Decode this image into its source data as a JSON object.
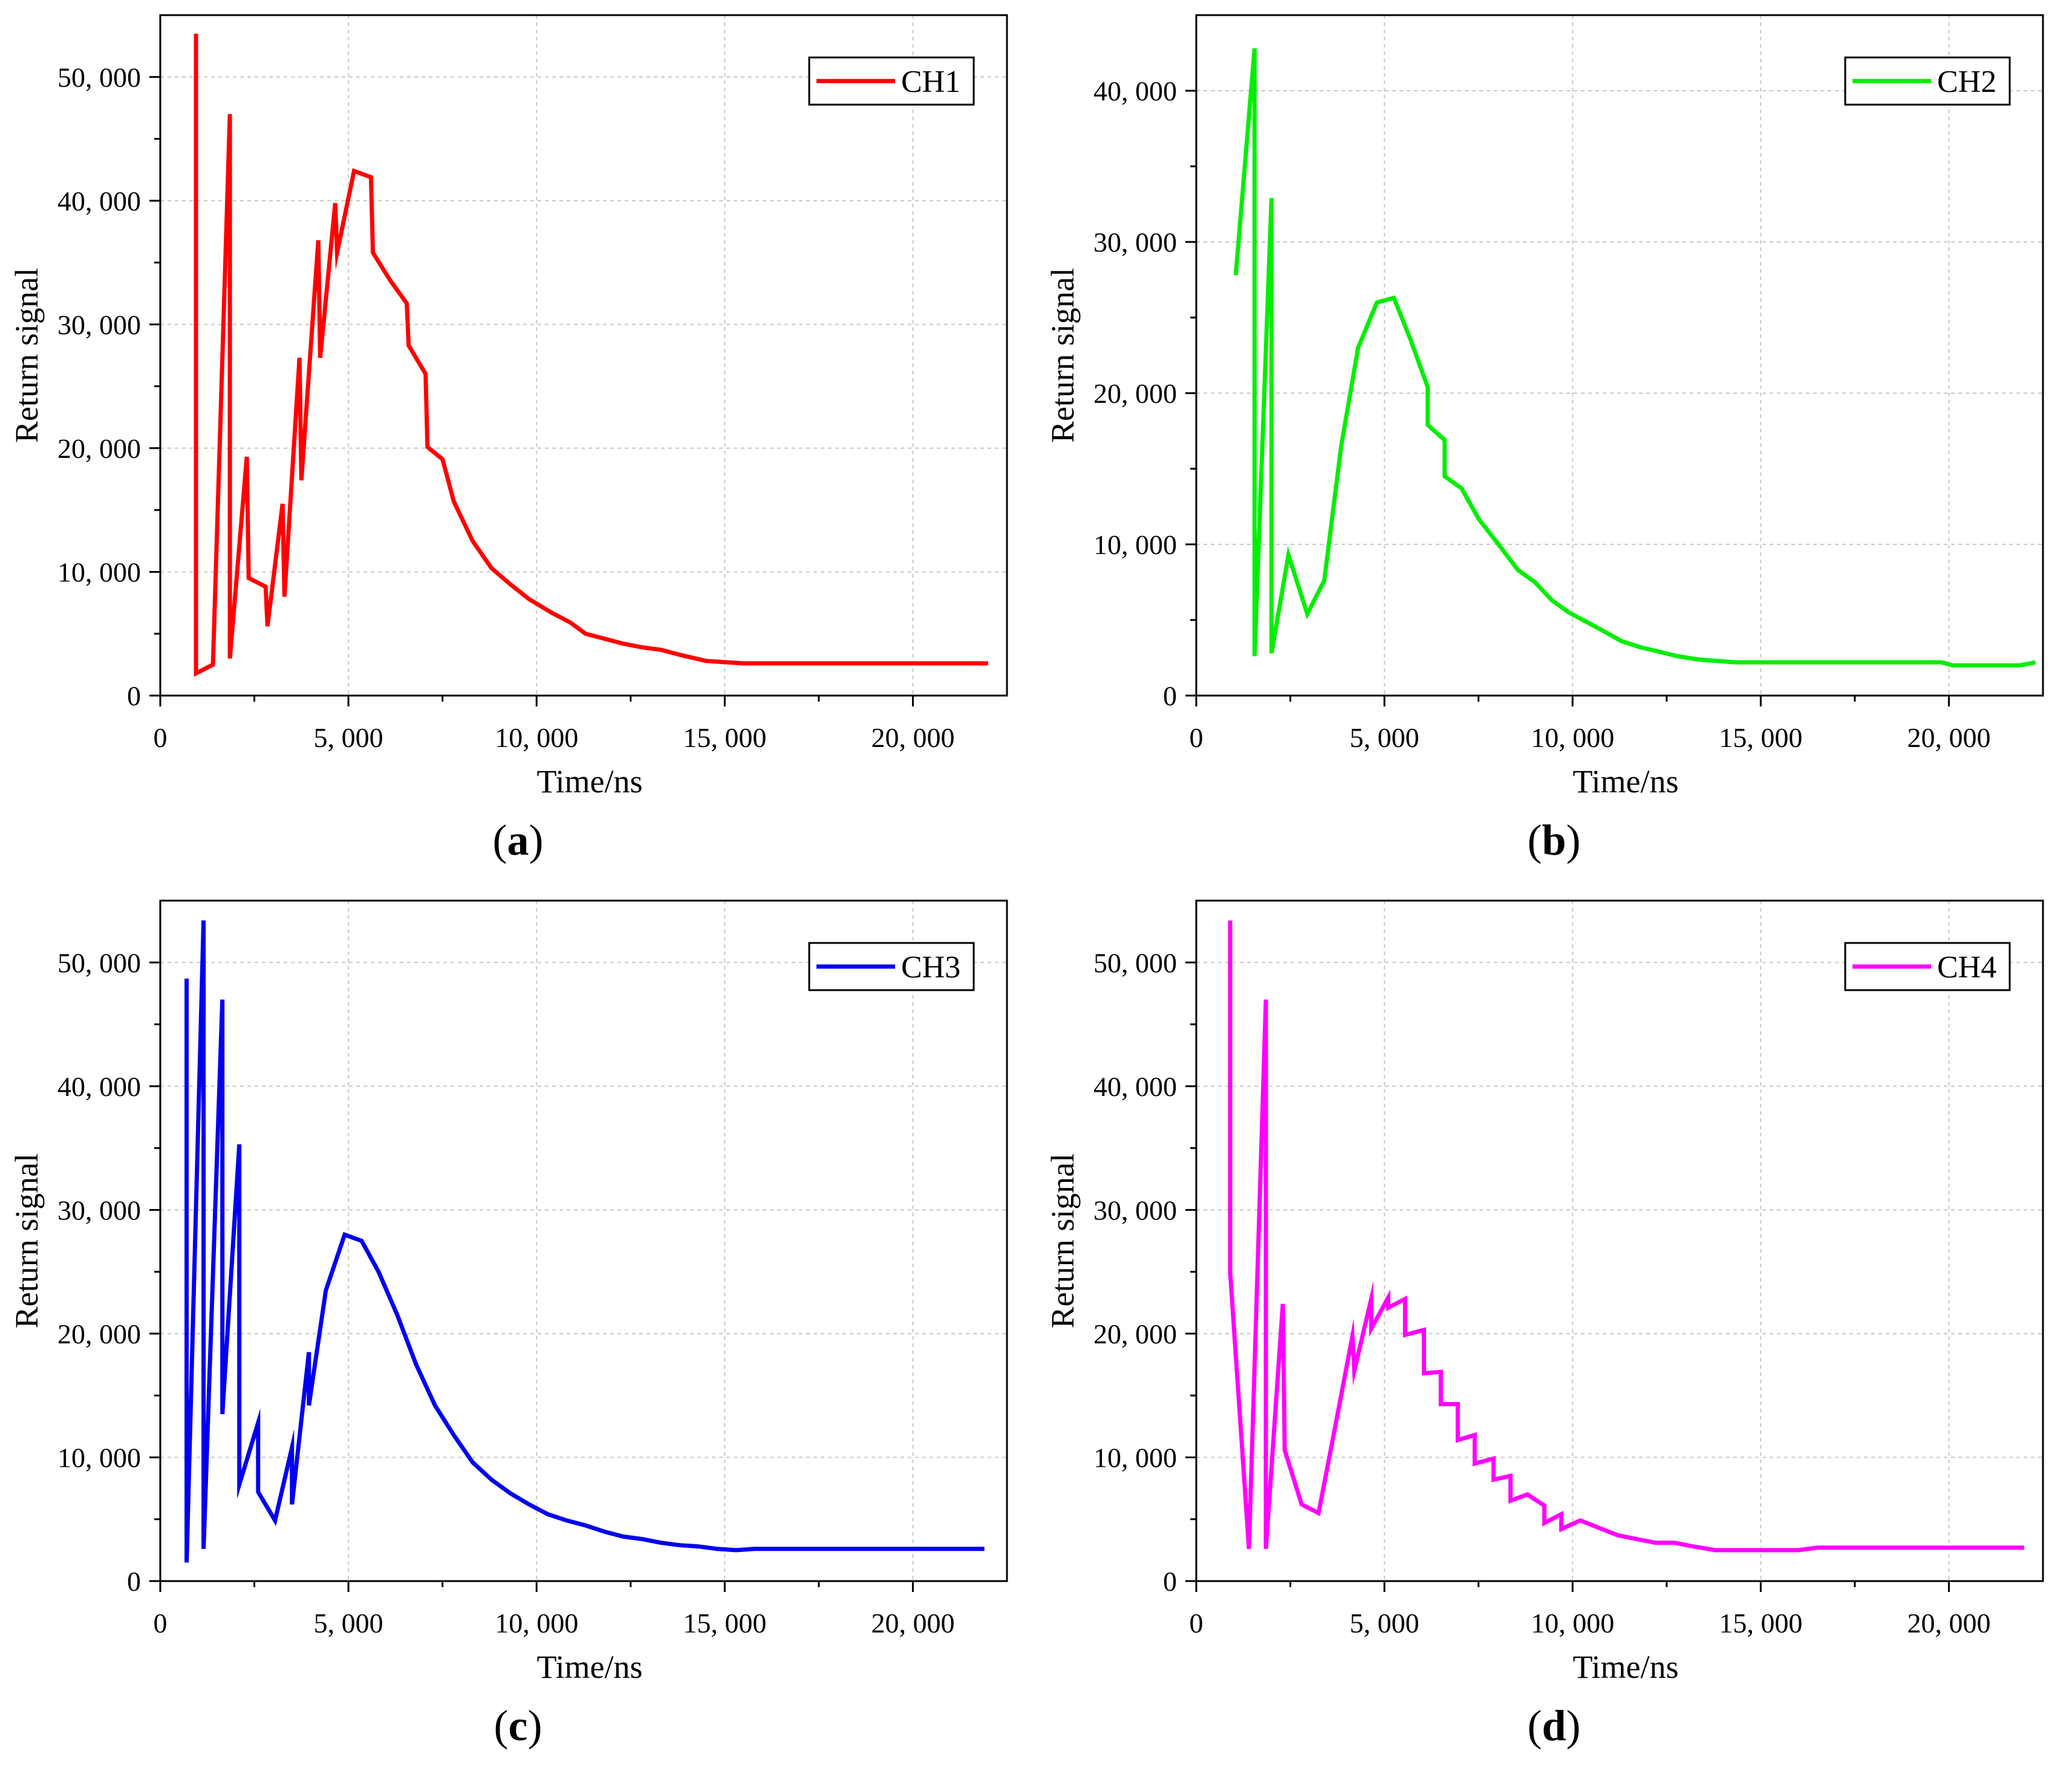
{
  "chart_data": [
    {
      "type": "line",
      "panel_label": "a",
      "xlabel": "Time/ns",
      "ylabel": "Return signal",
      "xlim": [
        0,
        22500
      ],
      "ylim": [
        0,
        55000
      ],
      "xticks": [
        0,
        5000,
        10000,
        15000,
        20000
      ],
      "xtick_labels": [
        "0",
        "5, 000",
        "10, 000",
        "15, 000",
        "20, 000"
      ],
      "yticks": [
        0,
        10000,
        20000,
        30000,
        40000,
        50000
      ],
      "ytick_labels": [
        "0",
        "10, 000",
        "20, 000",
        "30, 000",
        "40, 000",
        "50, 000"
      ],
      "grid": true,
      "legend_position": "top-right",
      "series": [
        {
          "name": "CH1",
          "color": "#ff0000",
          "x": [
            950,
            950,
            1400,
            1850,
            1850,
            2300,
            2350,
            2800,
            2850,
            3250,
            3300,
            3700,
            3750,
            4200,
            4250,
            4650,
            4700,
            5150,
            5600,
            5650,
            6100,
            6550,
            6600,
            7050,
            7100,
            7500,
            7800,
            8300,
            8800,
            9300,
            9800,
            10400,
            10900,
            11300,
            11800,
            12300,
            12800,
            13300,
            13800,
            14500,
            15000,
            15500,
            16500,
            18000,
            20000,
            22000
          ],
          "y": [
            53500,
            1800,
            2500,
            47000,
            3000,
            19300,
            9500,
            8800,
            5600,
            15500,
            8000,
            27300,
            17400,
            36800,
            27300,
            39800,
            35800,
            42400,
            41900,
            35800,
            33600,
            31700,
            28300,
            26000,
            20100,
            19100,
            15700,
            12500,
            10300,
            9000,
            7800,
            6700,
            5900,
            5000,
            4600,
            4200,
            3900,
            3700,
            3300,
            2800,
            2700,
            2600,
            2600,
            2600,
            2600,
            2600
          ]
        }
      ]
    },
    {
      "type": "line",
      "panel_label": "b",
      "xlabel": "Time/ns",
      "ylabel": "Return signal",
      "xlim": [
        0,
        22500
      ],
      "ylim": [
        0,
        45000
      ],
      "xticks": [
        0,
        5000,
        10000,
        15000,
        20000
      ],
      "xtick_labels": [
        "0",
        "5, 000",
        "10, 000",
        "15, 000",
        "20, 000"
      ],
      "yticks": [
        0,
        10000,
        20000,
        30000,
        40000
      ],
      "ytick_labels": [
        "0",
        "10, 000",
        "20, 000",
        "30, 000",
        "40, 000"
      ],
      "grid": true,
      "legend_position": "top-right",
      "series": [
        {
          "name": "CH2",
          "color": "#00ee00",
          "x": [
            1050,
            1550,
            1550,
            2000,
            2000,
            2450,
            2950,
            3400,
            3850,
            4300,
            4800,
            5250,
            5700,
            6150,
            6150,
            6600,
            6600,
            7050,
            7500,
            8000,
            8550,
            9000,
            9450,
            9900,
            10350,
            10800,
            11300,
            11800,
            12300,
            12800,
            13300,
            13800,
            14300,
            14800,
            15300,
            16000,
            18000,
            19800,
            20100,
            21000,
            21900,
            22300
          ],
          "y": [
            27800,
            42800,
            2600,
            32900,
            2800,
            9300,
            5400,
            7600,
            16500,
            23000,
            26000,
            26300,
            23500,
            20400,
            17900,
            16900,
            14500,
            13700,
            11700,
            10100,
            8300,
            7500,
            6300,
            5500,
            4900,
            4300,
            3600,
            3200,
            2900,
            2600,
            2400,
            2300,
            2200,
            2200,
            2200,
            2200,
            2200,
            2200,
            2000,
            2000,
            2000,
            2200
          ]
        }
      ]
    },
    {
      "type": "line",
      "panel_label": "c",
      "xlabel": "Time/ns",
      "ylabel": "Return signal",
      "xlim": [
        0,
        22500
      ],
      "ylim": [
        0,
        55000
      ],
      "xticks": [
        0,
        5000,
        10000,
        15000,
        20000
      ],
      "xtick_labels": [
        "0",
        "5, 000",
        "10, 000",
        "15, 000",
        "20, 000"
      ],
      "yticks": [
        0,
        10000,
        20000,
        30000,
        40000,
        50000
      ],
      "ytick_labels": [
        "0",
        "10, 000",
        "20, 000",
        "30, 000",
        "40, 000",
        "50, 000"
      ],
      "grid": true,
      "legend_position": "top-right",
      "series": [
        {
          "name": "CH3",
          "color": "#0000ee",
          "x": [
            700,
            700,
            1150,
            1150,
            1650,
            1650,
            2100,
            2100,
            2600,
            2600,
            3050,
            3500,
            3500,
            3950,
            3950,
            4400,
            4900,
            5350,
            5800,
            6300,
            6800,
            7300,
            7800,
            8300,
            8800,
            9300,
            9800,
            10300,
            10800,
            11300,
            11800,
            12300,
            12800,
            13300,
            13800,
            14300,
            14800,
            15300,
            15800,
            16500,
            18000,
            20000,
            21900
          ],
          "y": [
            48700,
            1500,
            53400,
            2600,
            47000,
            13500,
            35300,
            7800,
            12800,
            7200,
            4900,
            10800,
            6200,
            18500,
            14200,
            23500,
            28000,
            27500,
            25000,
            21500,
            17500,
            14200,
            11800,
            9600,
            8200,
            7100,
            6200,
            5400,
            4900,
            4500,
            4000,
            3600,
            3400,
            3100,
            2900,
            2800,
            2600,
            2500,
            2600,
            2600,
            2600,
            2600,
            2600
          ]
        }
      ]
    },
    {
      "type": "line",
      "panel_label": "d",
      "xlabel": "Time/ns",
      "ylabel": "Return signal",
      "xlim": [
        0,
        22500
      ],
      "ylim": [
        0,
        55000
      ],
      "xticks": [
        0,
        5000,
        10000,
        15000,
        20000
      ],
      "xtick_labels": [
        "0",
        "5, 000",
        "10, 000",
        "15, 000",
        "20, 000"
      ],
      "yticks": [
        0,
        10000,
        20000,
        30000,
        40000,
        50000
      ],
      "ytick_labels": [
        "0",
        "10, 000",
        "20, 000",
        "30, 000",
        "40, 000",
        "50, 000"
      ],
      "grid": true,
      "legend_position": "top-right",
      "series": [
        {
          "name": "CH4",
          "color": "#ff00ff",
          "x": [
            900,
            900,
            1400,
            1850,
            1850,
            2300,
            2350,
            2800,
            3250,
            3700,
            4150,
            4200,
            4650,
            4650,
            5100,
            5100,
            5550,
            5550,
            6050,
            6050,
            6500,
            6500,
            6950,
            6950,
            7400,
            7400,
            7900,
            7900,
            8350,
            8350,
            8800,
            9250,
            9250,
            9700,
            9700,
            10200,
            10700,
            11200,
            11700,
            12200,
            12700,
            13200,
            13800,
            14500,
            16000,
            16500,
            18000,
            20000,
            22000
          ],
          "y": [
            53400,
            25000,
            2600,
            47000,
            2600,
            22400,
            10600,
            6200,
            5500,
            12600,
            19800,
            17000,
            22800,
            20400,
            22900,
            22100,
            22800,
            19900,
            20300,
            16800,
            16900,
            14300,
            14300,
            11400,
            11800,
            9500,
            9900,
            8200,
            8500,
            6500,
            7000,
            6100,
            4700,
            5400,
            4200,
            4900,
            4300,
            3700,
            3400,
            3100,
            3100,
            2800,
            2500,
            2500,
            2500,
            2700,
            2700,
            2700,
            2700
          ]
        }
      ]
    }
  ]
}
